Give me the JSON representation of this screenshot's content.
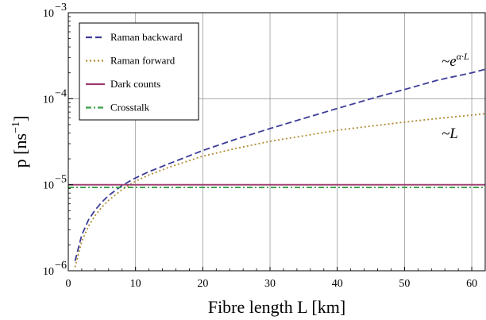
{
  "chart_data": {
    "type": "line",
    "xlabel": "Fibre length L [km]",
    "ylabel": "p [ns",
    "ylabel_sup": "−1",
    "ylabel_close": "]",
    "xlim": [
      0,
      62
    ],
    "ylim": [
      1e-06,
      0.001
    ],
    "yscale": "log",
    "grid": true,
    "legend_position": "top-left",
    "x_ticks": [
      0,
      10,
      20,
      30,
      40,
      50,
      60
    ],
    "y_ticks": [
      {
        "value": 1e-06,
        "base": "10",
        "exp": "−6"
      },
      {
        "value": 1e-05,
        "base": "10",
        "exp": "−5"
      },
      {
        "value": 0.0001,
        "base": "10",
        "exp": "−4"
      },
      {
        "value": 0.001,
        "base": "10",
        "exp": "−3"
      }
    ],
    "series": [
      {
        "name": "Raman backward",
        "color": "#3d3d99",
        "style": "dashed",
        "x": [
          1,
          2,
          3,
          4,
          5,
          6,
          8,
          10,
          12,
          15,
          20,
          25,
          30,
          35,
          40,
          45,
          50,
          55,
          60,
          62
        ],
        "y": [
          1.3e-06,
          2.6e-06,
          3.9e-06,
          5.1e-06,
          6.3e-06,
          7.5e-06,
          9.8e-06,
          1.2e-05,
          1.42e-05,
          1.76e-05,
          2.5e-05,
          3.4e-05,
          4.5e-05,
          5.9e-05,
          7.7e-05,
          0.0001,
          0.000128,
          0.000165,
          0.0002,
          0.00022
        ]
      },
      {
        "name": "Raman forward",
        "color": "#b08c30",
        "style": "dotted",
        "x": [
          1,
          2,
          3,
          4,
          5,
          6,
          8,
          10,
          12,
          15,
          20,
          25,
          30,
          35,
          40,
          45,
          50,
          55,
          60,
          62
        ],
        "y": [
          1.1e-06,
          2.2e-06,
          3.3e-06,
          4.4e-06,
          5.5e-06,
          6.6e-06,
          8.8e-06,
          1.1e-05,
          1.3e-05,
          1.6e-05,
          2.15e-05,
          2.65e-05,
          3.2e-05,
          3.7e-05,
          4.3e-05,
          4.8e-05,
          5.35e-05,
          5.9e-05,
          6.45e-05,
          6.7e-05
        ]
      },
      {
        "name": "Dark counts",
        "color": "#9c3a6e",
        "style": "solid",
        "x": [
          0,
          62
        ],
        "y": [
          1e-05,
          1e-05
        ]
      },
      {
        "name": "Crosstalk",
        "color": "#3aa048",
        "style": "dashdot",
        "x": [
          0,
          62
        ],
        "y": [
          9.3e-06,
          9.3e-06
        ]
      }
    ],
    "annotations": [
      {
        "prefix": "~",
        "base": "e",
        "superscript": "α·L"
      },
      {
        "prefix": "~",
        "base": "L",
        "superscript": ""
      }
    ]
  }
}
